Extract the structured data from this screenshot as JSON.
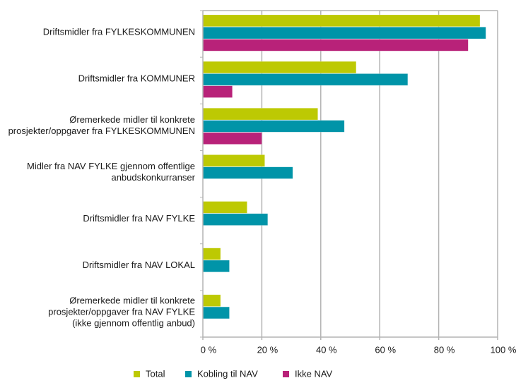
{
  "chart_data": {
    "type": "bar",
    "orientation": "horizontal",
    "title": "",
    "xlabel": "",
    "ylabel": "",
    "xlim": [
      0,
      100
    ],
    "x_ticks": [
      "0 %",
      "20 %",
      "40 %",
      "60 %",
      "80 %",
      "100 %"
    ],
    "x_tick_values": [
      0,
      20,
      40,
      60,
      80,
      100
    ],
    "grid": true,
    "legend_position": "bottom",
    "categories": [
      [
        "Driftsmidler fra FYLKESKOMMUNEN"
      ],
      [
        "Driftsmidler fra KOMMUNER"
      ],
      [
        "Øremerkede midler til konkrete",
        "prosjekter/oppgaver fra FYLKESKOMMUNEN"
      ],
      [
        "Midler fra NAV FYLKE gjennom offentlige",
        "anbudskonkurranser"
      ],
      [
        "Driftsmidler fra NAV FYLKE"
      ],
      [
        "Driftsmidler fra NAV LOKAL"
      ],
      [
        "Øremerkede midler til konkrete",
        "prosjekter/oppgaver fra NAV FYLKE",
        "(ikke gjennom offentlig anbud)"
      ]
    ],
    "series": [
      {
        "name": "Total",
        "color": "#bdc903",
        "values": [
          94,
          52,
          39,
          21,
          15,
          6,
          6
        ]
      },
      {
        "name": "Kobling til NAV",
        "color": "#0094a8",
        "values": [
          96,
          69.5,
          48,
          30.5,
          22,
          9,
          9
        ]
      },
      {
        "name": "Ikke NAV",
        "color": "#b82279",
        "values": [
          90,
          10,
          20,
          0,
          0,
          0,
          0
        ]
      }
    ]
  }
}
